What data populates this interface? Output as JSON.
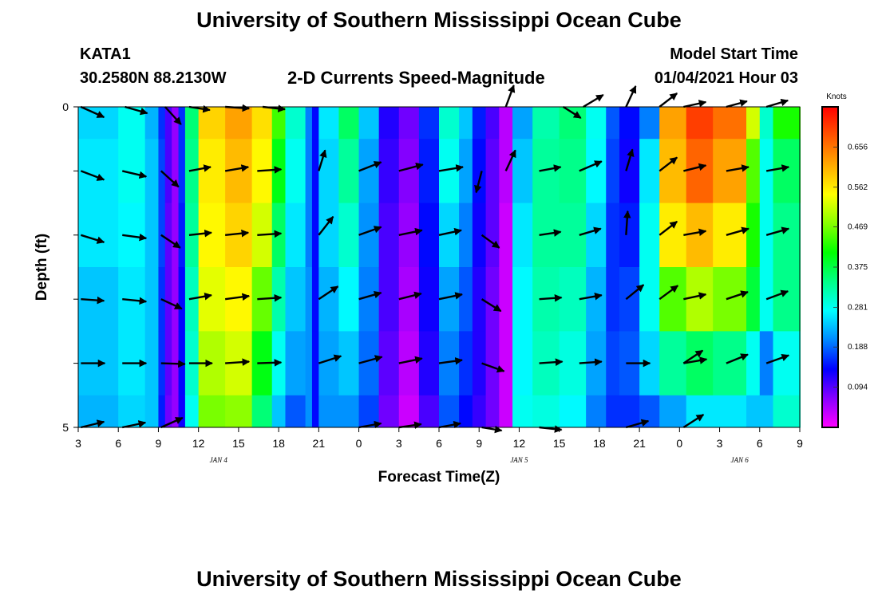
{
  "header": {
    "title_top": "University of Southern Mississippi Ocean Cube",
    "title_bottom": "University of Southern Mississippi Ocean Cube",
    "station": "KATA1",
    "location": "30.2580N 88.2130W",
    "subtitle": "2-D Currents Speed-Magnitude",
    "model_start_label": "Model Start Time",
    "model_start_value": "01/04/2021 Hour 03"
  },
  "chart_data": {
    "type": "heatmap",
    "title": "2-D Currents Speed-Magnitude",
    "xlabel": "Forecast Time(Z)",
    "ylabel": "Depth (ft)",
    "x_tick_labels": [
      "3",
      "6",
      "9",
      "12",
      "15",
      "18",
      "21",
      "0",
      "3",
      "6",
      "9",
      "12",
      "15",
      "18",
      "21",
      "0",
      "3",
      "6",
      "9"
    ],
    "x_range_hours": [
      0,
      54
    ],
    "day_labels": [
      {
        "text": "JAN 4",
        "hour": 10.5
      },
      {
        "text": "JAN 5",
        "hour": 33
      },
      {
        "text": "JAN 6",
        "hour": 49.5
      }
    ],
    "y_tick_labels": [
      "0",
      "5"
    ],
    "ylim": [
      0,
      5
    ],
    "depth_levels": [
      0,
      1,
      2,
      3,
      4,
      5
    ],
    "colorbar": {
      "title": "Knots",
      "ticks": [
        "0.656",
        "0.562",
        "0.469",
        "0.375",
        "0.281",
        "0.188",
        "0.094"
      ],
      "tick_values": [
        0.656,
        0.562,
        0.469,
        0.375,
        0.281,
        0.188,
        0.094
      ],
      "range": [
        0.0,
        0.75
      ],
      "colors": [
        "#ff00ff",
        "#8800ff",
        "#0000ff",
        "#0088ff",
        "#00ffff",
        "#00ff88",
        "#00ff00",
        "#88ff00",
        "#ffff00",
        "#ffaa00",
        "#ff5500",
        "#ff0000"
      ]
    },
    "speed_columns": [
      {
        "hour": 0,
        "speed": [
          0.25,
          0.26,
          0.26,
          0.24,
          0.24,
          0.23
        ]
      },
      {
        "hour": 3,
        "speed": [
          0.28,
          0.28,
          0.27,
          0.26,
          0.26,
          0.25
        ]
      },
      {
        "hour": 5,
        "speed": [
          0.23,
          0.24,
          0.24,
          0.24,
          0.24,
          0.24
        ]
      },
      {
        "hour": 6,
        "speed": [
          0.16,
          0.17,
          0.17,
          0.16,
          0.16,
          0.15
        ]
      },
      {
        "hour": 6.5,
        "speed": [
          0.1,
          0.1,
          0.09,
          0.09,
          0.09,
          0.08
        ]
      },
      {
        "hour": 7,
        "speed": [
          0.06,
          0.06,
          0.06,
          0.06,
          0.06,
          0.06
        ]
      },
      {
        "hour": 7.5,
        "speed": [
          0.16,
          0.16,
          0.15,
          0.14,
          0.14,
          0.13
        ]
      },
      {
        "hour": 8,
        "speed": [
          0.35,
          0.34,
          0.33,
          0.31,
          0.3,
          0.28
        ]
      },
      {
        "hour": 9,
        "speed": [
          0.58,
          0.56,
          0.55,
          0.53,
          0.5,
          0.47
        ]
      },
      {
        "hour": 11,
        "speed": [
          0.62,
          0.6,
          0.58,
          0.55,
          0.52,
          0.48
        ]
      },
      {
        "hour": 13,
        "speed": [
          0.57,
          0.55,
          0.52,
          0.46,
          0.4,
          0.35
        ]
      },
      {
        "hour": 14.5,
        "speed": [
          0.44,
          0.4,
          0.36,
          0.32,
          0.28,
          0.24
        ]
      },
      {
        "hour": 15.5,
        "speed": [
          0.3,
          0.28,
          0.26,
          0.24,
          0.22,
          0.18
        ]
      },
      {
        "hour": 17,
        "speed": [
          0.2,
          0.2,
          0.2,
          0.21,
          0.21,
          0.21
        ]
      },
      {
        "hour": 17.5,
        "speed": [
          0.14,
          0.14,
          0.14,
          0.14,
          0.14,
          0.14
        ]
      },
      {
        "hour": 18,
        "speed": [
          0.26,
          0.25,
          0.25,
          0.23,
          0.22,
          0.21
        ]
      },
      {
        "hour": 19.5,
        "speed": [
          0.36,
          0.33,
          0.3,
          0.27,
          0.24,
          0.21
        ]
      },
      {
        "hour": 21,
        "speed": [
          0.24,
          0.22,
          0.21,
          0.2,
          0.19,
          0.17
        ]
      },
      {
        "hour": 22.5,
        "speed": [
          0.12,
          0.11,
          0.1,
          0.1,
          0.09,
          0.08
        ]
      },
      {
        "hour": 24,
        "speed": [
          0.08,
          0.07,
          0.06,
          0.05,
          0.04,
          0.03
        ]
      },
      {
        "hour": 25.5,
        "speed": [
          0.16,
          0.15,
          0.14,
          0.13,
          0.12,
          0.1
        ]
      },
      {
        "hour": 27,
        "speed": [
          0.3,
          0.28,
          0.25,
          0.22,
          0.2,
          0.18
        ]
      },
      {
        "hour": 28.5,
        "speed": [
          0.24,
          0.22,
          0.2,
          0.18,
          0.16,
          0.14
        ]
      },
      {
        "hour": 29.5,
        "speed": [
          0.15,
          0.14,
          0.13,
          0.12,
          0.12,
          0.11
        ]
      },
      {
        "hour": 30.5,
        "speed": [
          0.1,
          0.09,
          0.09,
          0.08,
          0.08,
          0.08
        ]
      },
      {
        "hour": 31.5,
        "speed": [
          0.04,
          0.04,
          0.03,
          0.03,
          0.03,
          0.03
        ]
      },
      {
        "hour": 32.5,
        "speed": [
          0.22,
          0.24,
          0.26,
          0.27,
          0.27,
          0.28
        ]
      },
      {
        "hour": 34,
        "speed": [
          0.32,
          0.33,
          0.33,
          0.32,
          0.31,
          0.29
        ]
      },
      {
        "hour": 36,
        "speed": [
          0.35,
          0.34,
          0.33,
          0.31,
          0.29,
          0.27
        ]
      },
      {
        "hour": 38,
        "speed": [
          0.28,
          0.27,
          0.25,
          0.23,
          0.22,
          0.2
        ]
      },
      {
        "hour": 39.5,
        "speed": [
          0.18,
          0.17,
          0.16,
          0.16,
          0.17,
          0.16
        ]
      },
      {
        "hour": 40.5,
        "speed": [
          0.14,
          0.13,
          0.15,
          0.17,
          0.18,
          0.16
        ]
      },
      {
        "hour": 42,
        "speed": [
          0.2,
          0.26,
          0.28,
          0.28,
          0.25,
          0.18
        ]
      },
      {
        "hour": 43.5,
        "speed": [
          0.62,
          0.6,
          0.56,
          0.45,
          0.33,
          0.22
        ]
      },
      {
        "hour": 45.5,
        "speed": [
          0.7,
          0.67,
          0.6,
          0.5,
          0.36,
          0.26
        ]
      },
      {
        "hour": 47.5,
        "speed": [
          0.66,
          0.62,
          0.56,
          0.47,
          0.34,
          0.26
        ]
      },
      {
        "hour": 50,
        "speed": [
          0.52,
          0.45,
          0.42,
          0.38,
          0.28,
          0.24
        ]
      },
      {
        "hour": 51,
        "speed": [
          0.3,
          0.28,
          0.28,
          0.28,
          0.2,
          0.24
        ]
      },
      {
        "hour": 52,
        "speed": [
          0.42,
          0.36,
          0.34,
          0.34,
          0.28,
          0.3
        ]
      },
      {
        "hour": 54,
        "speed": [
          0.44,
          0.38,
          0.34,
          0.34,
          0.3,
          0.3
        ]
      }
    ],
    "vectors": [
      {
        "depth": 0,
        "items": [
          {
            "hour": 0.2,
            "dx": 29,
            "dy": 13
          },
          {
            "hour": 3.5,
            "dx": 28,
            "dy": 8
          },
          {
            "hour": 6.5,
            "dx": 20,
            "dy": 22
          },
          {
            "hour": 8.3,
            "dx": 26,
            "dy": 4
          },
          {
            "hour": 11.0,
            "dx": 30,
            "dy": 2
          },
          {
            "hour": 13.8,
            "dx": 28,
            "dy": 3
          },
          {
            "hour": 36.3,
            "dx": 22,
            "dy": 14
          },
          {
            "hour": 32.0,
            "dx": 10,
            "dy": -27
          },
          {
            "hour": 37.8,
            "dx": 25,
            "dy": -15
          },
          {
            "hour": 41.0,
            "dx": 12,
            "dy": -26
          },
          {
            "hour": 43.5,
            "dx": 22,
            "dy": -17
          },
          {
            "hour": 45.3,
            "dx": 28,
            "dy": -6
          },
          {
            "hour": 48.5,
            "dx": 26,
            "dy": -7
          },
          {
            "hour": 51.5,
            "dx": 27,
            "dy": -8
          }
        ]
      },
      {
        "depth": 1,
        "items": [
          {
            "hour": 0.2,
            "dx": 29,
            "dy": 11
          },
          {
            "hour": 3.3,
            "dx": 30,
            "dy": 7
          },
          {
            "hour": 6.2,
            "dx": 22,
            "dy": 20
          },
          {
            "hour": 8.3,
            "dx": 27,
            "dy": -5
          },
          {
            "hour": 11.0,
            "dx": 29,
            "dy": -5
          },
          {
            "hour": 13.4,
            "dx": 30,
            "dy": -2
          },
          {
            "hour": 18.0,
            "dx": 8,
            "dy": -26
          },
          {
            "hour": 21.0,
            "dx": 28,
            "dy": -11
          },
          {
            "hour": 24.0,
            "dx": 30,
            "dy": -8
          },
          {
            "hour": 27.0,
            "dx": 30,
            "dy": -5
          },
          {
            "hour": 30.2,
            "dx": -7,
            "dy": 27
          },
          {
            "hour": 32.0,
            "dx": 12,
            "dy": -26
          },
          {
            "hour": 34.5,
            "dx": 27,
            "dy": -5
          },
          {
            "hour": 37.5,
            "dx": 28,
            "dy": -12
          },
          {
            "hour": 41.0,
            "dx": 8,
            "dy": -27
          },
          {
            "hour": 43.5,
            "dx": 22,
            "dy": -17
          },
          {
            "hour": 45.3,
            "dx": 28,
            "dy": -7
          },
          {
            "hour": 48.5,
            "dx": 28,
            "dy": -5
          },
          {
            "hour": 51.5,
            "dx": 28,
            "dy": -5
          }
        ]
      },
      {
        "depth": 2,
        "items": [
          {
            "hour": 0.2,
            "dx": 29,
            "dy": 9
          },
          {
            "hour": 3.3,
            "dx": 30,
            "dy": 4
          },
          {
            "hour": 6.2,
            "dx": 24,
            "dy": 16
          },
          {
            "hour": 8.3,
            "dx": 28,
            "dy": -3
          },
          {
            "hour": 11.0,
            "dx": 29,
            "dy": -3
          },
          {
            "hour": 13.4,
            "dx": 30,
            "dy": -2
          },
          {
            "hour": 18.0,
            "dx": 18,
            "dy": -23
          },
          {
            "hour": 21.0,
            "dx": 28,
            "dy": -10
          },
          {
            "hour": 24.0,
            "dx": 29,
            "dy": -6
          },
          {
            "hour": 27.0,
            "dx": 28,
            "dy": -6
          },
          {
            "hour": 30.2,
            "dx": 22,
            "dy": 16
          },
          {
            "hour": 34.5,
            "dx": 27,
            "dy": -4
          },
          {
            "hour": 37.5,
            "dx": 27,
            "dy": -8
          },
          {
            "hour": 41.0,
            "dx": 2,
            "dy": -30
          },
          {
            "hour": 43.5,
            "dx": 22,
            "dy": -17
          },
          {
            "hour": 45.3,
            "dx": 28,
            "dy": -5
          },
          {
            "hour": 48.5,
            "dx": 28,
            "dy": -8
          },
          {
            "hour": 51.5,
            "dx": 28,
            "dy": -8
          }
        ]
      },
      {
        "depth": 3,
        "items": [
          {
            "hour": 0.2,
            "dx": 29,
            "dy": 2
          },
          {
            "hour": 3.3,
            "dx": 30,
            "dy": 3
          },
          {
            "hour": 6.2,
            "dx": 26,
            "dy": 12
          },
          {
            "hour": 8.3,
            "dx": 28,
            "dy": -5
          },
          {
            "hour": 11.0,
            "dx": 30,
            "dy": -4
          },
          {
            "hour": 13.4,
            "dx": 30,
            "dy": -2
          },
          {
            "hour": 18.0,
            "dx": 24,
            "dy": -16
          },
          {
            "hour": 21.0,
            "dx": 28,
            "dy": -8
          },
          {
            "hour": 24.0,
            "dx": 28,
            "dy": -7
          },
          {
            "hour": 27.0,
            "dx": 29,
            "dy": -6
          },
          {
            "hour": 30.2,
            "dx": 24,
            "dy": 15
          },
          {
            "hour": 34.5,
            "dx": 28,
            "dy": -2
          },
          {
            "hour": 37.5,
            "dx": 28,
            "dy": -5
          },
          {
            "hour": 41.0,
            "dx": 22,
            "dy": -18
          },
          {
            "hour": 43.5,
            "dx": 23,
            "dy": -17
          },
          {
            "hour": 45.3,
            "dx": 28,
            "dy": -6
          },
          {
            "hour": 48.5,
            "dx": 27,
            "dy": -9
          },
          {
            "hour": 51.5,
            "dx": 27,
            "dy": -10
          }
        ]
      },
      {
        "depth": 4,
        "items": [
          {
            "hour": 0.2,
            "dx": 30,
            "dy": 0
          },
          {
            "hour": 3.3,
            "dx": 30,
            "dy": 0
          },
          {
            "hour": 6.2,
            "dx": 30,
            "dy": 1
          },
          {
            "hour": 8.3,
            "dx": 29,
            "dy": 0
          },
          {
            "hour": 11.0,
            "dx": 30,
            "dy": -2
          },
          {
            "hour": 13.4,
            "dx": 30,
            "dy": -1
          },
          {
            "hour": 18.0,
            "dx": 28,
            "dy": -9
          },
          {
            "hour": 21.0,
            "dx": 29,
            "dy": -8
          },
          {
            "hour": 24.0,
            "dx": 29,
            "dy": -6
          },
          {
            "hour": 27.0,
            "dx": 29,
            "dy": -4
          },
          {
            "hour": 30.2,
            "dx": 28,
            "dy": 10
          },
          {
            "hour": 34.5,
            "dx": 29,
            "dy": -2
          },
          {
            "hour": 37.5,
            "dx": 28,
            "dy": -2
          },
          {
            "hour": 41.0,
            "dx": 30,
            "dy": 0
          },
          {
            "hour": 45.3,
            "dx": 24,
            "dy": -16
          },
          {
            "hour": 45.3,
            "dx": 29,
            "dy": -5
          },
          {
            "hour": 48.5,
            "dx": 27,
            "dy": -11
          },
          {
            "hour": 51.5,
            "dx": 28,
            "dy": -10
          }
        ]
      },
      {
        "depth": 5,
        "items": [
          {
            "hour": 0.2,
            "dx": 29,
            "dy": -7
          },
          {
            "hour": 3.3,
            "dx": 29,
            "dy": -6
          },
          {
            "hour": 6.2,
            "dx": 27,
            "dy": -12
          },
          {
            "hour": 21.0,
            "dx": 28,
            "dy": -5
          },
          {
            "hour": 24.0,
            "dx": 28,
            "dy": -4
          },
          {
            "hour": 27.0,
            "dx": 27,
            "dy": -5
          },
          {
            "hour": 30.2,
            "dx": 25,
            "dy": 4
          },
          {
            "hour": 34.5,
            "dx": 28,
            "dy": 3
          },
          {
            "hour": 41.0,
            "dx": 28,
            "dy": -8
          },
          {
            "hour": 45.3,
            "dx": 25,
            "dy": -16
          }
        ]
      }
    ]
  }
}
